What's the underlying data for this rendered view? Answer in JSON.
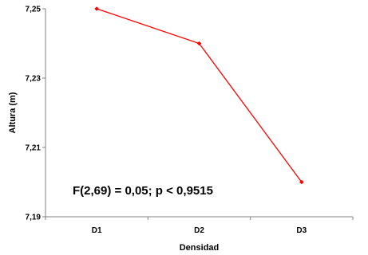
{
  "chart_data": {
    "type": "line",
    "categories": [
      "D1",
      "D2",
      "D3"
    ],
    "values": [
      7.25,
      7.24,
      7.2
    ],
    "xlabel": "Densidad",
    "ylabel": "Altura (m)",
    "ylim": [
      7.19,
      7.25
    ],
    "yticks": [
      "7,25",
      "7,23",
      "7,21",
      "7,19"
    ],
    "ytick_values": [
      7.25,
      7.23,
      7.21,
      7.19
    ],
    "annotation": "F(2,69) = 0,05; p < 0,9515",
    "grid": false,
    "legend": "none",
    "line_color": "#ff0000",
    "axis_color": "#808080"
  }
}
